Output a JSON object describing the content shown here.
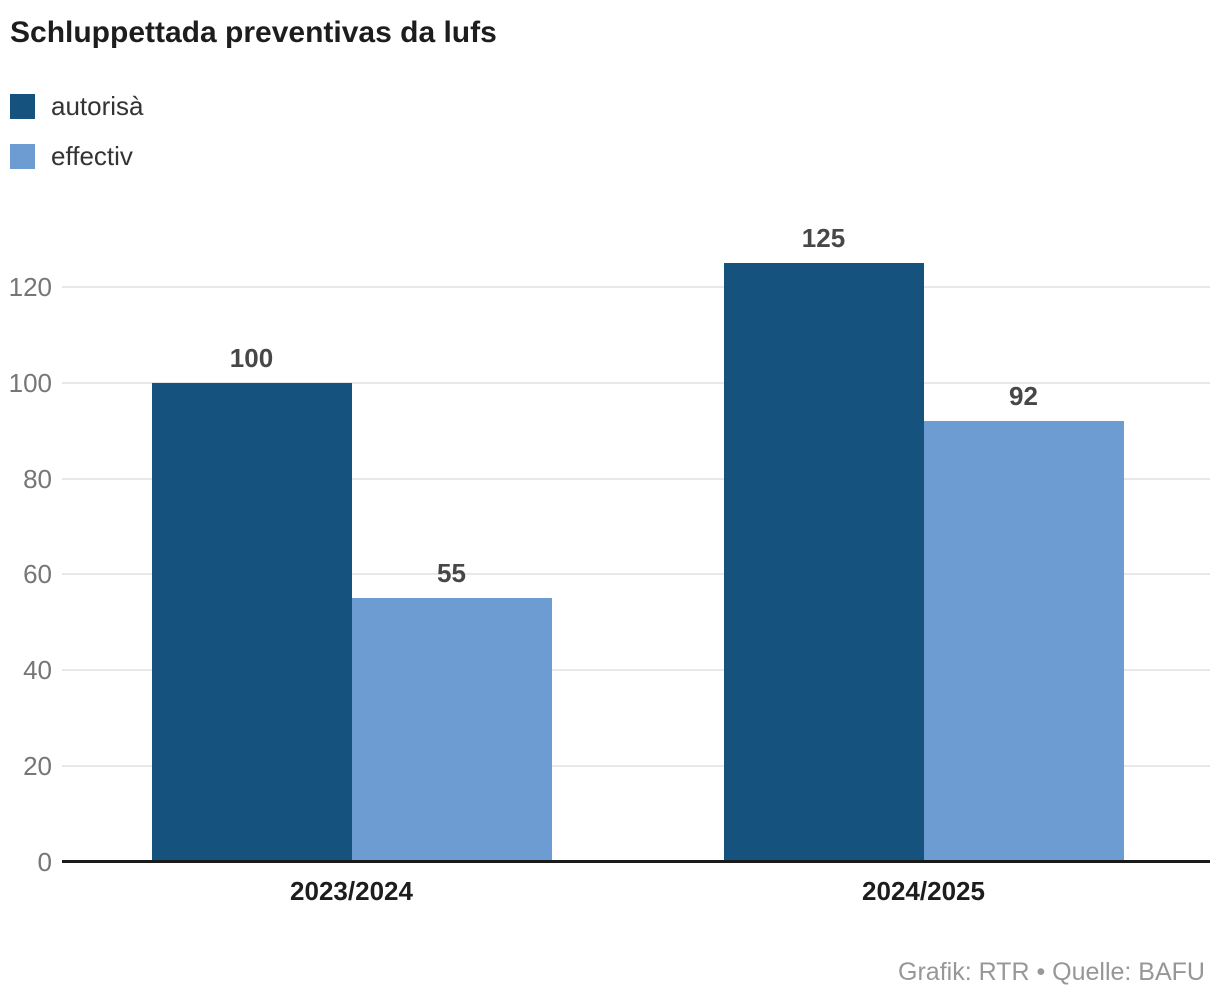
{
  "chart": {
    "title": "Schluppettada preventivas da lufs"
  },
  "chart_data": {
    "type": "bar",
    "title": "Schluppettada preventivas da lufs",
    "categories": [
      "2023/2024",
      "2024/2025"
    ],
    "series": [
      {
        "name": "autorisà",
        "color": "#15527E",
        "values": [
          100,
          125
        ]
      },
      {
        "name": "effectiv",
        "color": "#6C9CD2",
        "values": [
          55,
          92
        ]
      }
    ],
    "yticks": [
      0,
      20,
      40,
      60,
      80,
      100,
      120
    ],
    "ylim": [
      0,
      130
    ],
    "grid": true,
    "legend_position": "top-left",
    "value_labels": true,
    "xlabel": "",
    "ylabel": ""
  },
  "footer": {
    "text": "Grafik: RTR • Quelle: BAFU"
  },
  "colors": {
    "series_dark": "#15527E",
    "series_light": "#6C9CD2",
    "title_text": "#1d1d1d",
    "value_label": "#474747",
    "tick_label": "#767676",
    "gridline": "#e8e8e8",
    "axis_line": "#1a1a1a",
    "category_label": "#1d1d1d",
    "footer_text": "#979797"
  }
}
